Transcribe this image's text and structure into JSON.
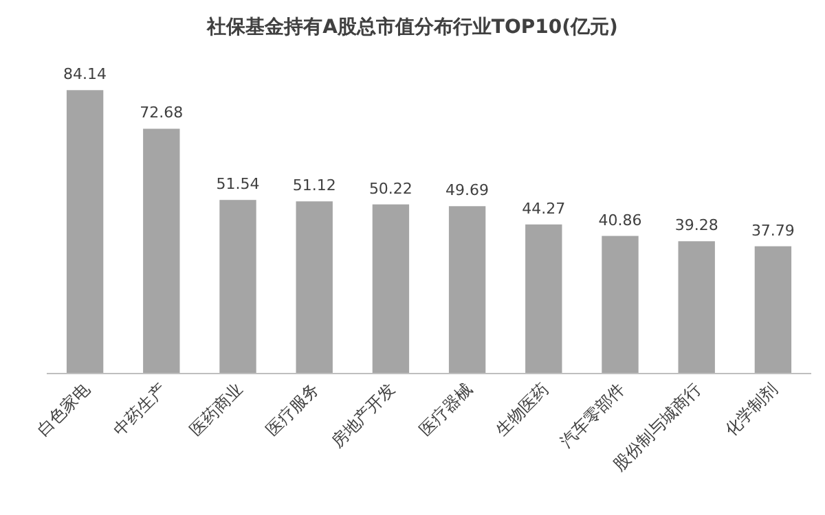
{
  "chart_data": {
    "type": "bar",
    "title": "社保基金持有A股总市值分布行业TOP10(亿元)",
    "categories": [
      "白色家电",
      "中药生产",
      "医药商业",
      "医疗服务",
      "房地产开发",
      "医疗器械",
      "生物医药",
      "汽车零部件",
      "股份制与城商行",
      "化学制剂"
    ],
    "values": [
      84.14,
      72.68,
      51.54,
      51.12,
      50.22,
      49.69,
      44.27,
      40.86,
      39.28,
      37.79
    ],
    "color": "#a5a5a5",
    "data_labels": true
  }
}
